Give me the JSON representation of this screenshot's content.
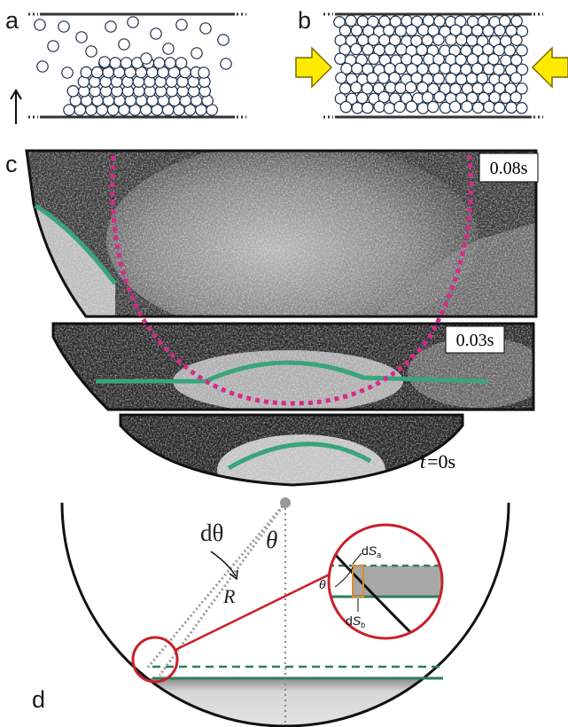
{
  "panels": {
    "a": "a",
    "b": "b",
    "c": "c",
    "d": "d"
  },
  "panel_c": {
    "frame_top_time": "0.08s",
    "frame_mid_time": "0.03s",
    "frame_bottom_time_var": "t",
    "frame_bottom_time_value": "=0s"
  },
  "panel_d": {
    "angle_increment_label": "dθ",
    "angle_label": "θ",
    "radius_label": "R",
    "inset_angle_label": "θ",
    "inset_area_a": {
      "prefix": "d",
      "var": "S",
      "sub": "a"
    },
    "inset_area_b": {
      "prefix": "d",
      "var": "S",
      "sub": "b"
    }
  },
  "colors": {
    "interface_green": "#3aa47a",
    "trajectory_magenta": "#d62a8c",
    "compression_arrow_yellow": "#ffea00",
    "zoom_circle_red": "#c8202a",
    "inset_corner_orange": "#e08a2c"
  }
}
